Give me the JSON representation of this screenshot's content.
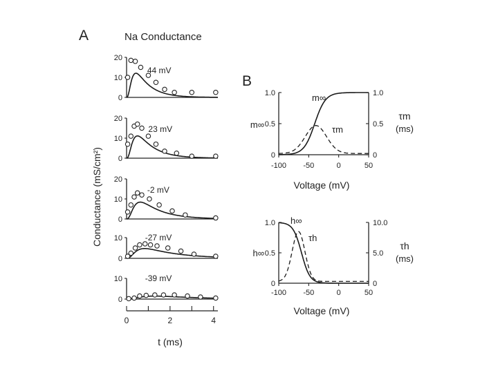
{
  "panel_a": {
    "letter": "A",
    "title": "Na Conductance",
    "ylabel": "Conductance (mS/cm²)",
    "xlabel": "t (ms)",
    "x_ticks": [
      "0",
      "2",
      "4"
    ]
  },
  "panel_b": {
    "letter": "B",
    "xlabel": "Voltage (mV)"
  },
  "chart_data": [
    {
      "type": "line",
      "id": "na-44",
      "label": "44 mV",
      "xlim": [
        0,
        4.2
      ],
      "ylim": [
        0,
        20
      ],
      "y_ticks": [
        "0",
        "10",
        "20"
      ],
      "fit": {
        "gmax": 30,
        "tau_m": 0.17,
        "tau_h": 0.65
      },
      "points": [
        [
          0.05,
          10
        ],
        [
          0.2,
          18.5
        ],
        [
          0.4,
          18
        ],
        [
          0.65,
          15
        ],
        [
          1.0,
          11
        ],
        [
          1.35,
          7.5
        ],
        [
          1.75,
          4
        ],
        [
          2.2,
          2.5
        ],
        [
          3.0,
          2.5
        ],
        [
          4.1,
          2.5
        ]
      ]
    },
    {
      "type": "line",
      "id": "na-23",
      "label": "23 mV",
      "xlim": [
        0,
        4.2
      ],
      "ylim": [
        0,
        20
      ],
      "y_ticks": [
        "0",
        "10",
        "20"
      ],
      "fit": {
        "gmax": 28,
        "tau_m": 0.2,
        "tau_h": 0.75
      },
      "points": [
        [
          0.05,
          7
        ],
        [
          0.2,
          11
        ],
        [
          0.35,
          16
        ],
        [
          0.5,
          17
        ],
        [
          0.7,
          15
        ],
        [
          1.0,
          11
        ],
        [
          1.35,
          7
        ],
        [
          1.75,
          3.5
        ],
        [
          2.3,
          2.5
        ],
        [
          3.0,
          1
        ],
        [
          4.1,
          1
        ]
      ]
    },
    {
      "type": "line",
      "id": "na-m2",
      "label": "-2 mV",
      "xlim": [
        0,
        4.2
      ],
      "ylim": [
        0,
        20
      ],
      "y_ticks": [
        "0",
        "10",
        "20"
      ],
      "fit": {
        "gmax": 21,
        "tau_m": 0.25,
        "tau_h": 0.95
      },
      "points": [
        [
          0.05,
          3.5
        ],
        [
          0.2,
          7
        ],
        [
          0.35,
          11
        ],
        [
          0.5,
          13
        ],
        [
          0.7,
          12
        ],
        [
          1.05,
          10
        ],
        [
          1.5,
          7
        ],
        [
          2.1,
          4
        ],
        [
          2.7,
          2
        ],
        [
          4.1,
          0.5
        ]
      ]
    },
    {
      "type": "line",
      "id": "na-m27",
      "label": "-27 mV",
      "xlim": [
        0,
        4.2
      ],
      "ylim": [
        0,
        10
      ],
      "y_ticks": [
        "0",
        "10"
      ],
      "fit": {
        "gmax": 10,
        "tau_m": 0.3,
        "tau_h": 1.5
      },
      "points": [
        [
          0.05,
          1
        ],
        [
          0.2,
          2.5
        ],
        [
          0.4,
          5
        ],
        [
          0.6,
          6.5
        ],
        [
          0.85,
          7
        ],
        [
          1.1,
          6.5
        ],
        [
          1.4,
          6
        ],
        [
          1.9,
          5
        ],
        [
          2.5,
          3.5
        ],
        [
          3.1,
          2
        ],
        [
          4.1,
          1
        ]
      ]
    },
    {
      "type": "line",
      "id": "na-m39",
      "label": "-39 mV",
      "xlim": [
        0,
        4.2
      ],
      "ylim": [
        0,
        10
      ],
      "y_ticks": [
        "0",
        "10"
      ],
      "fit": {
        "gmax": 3.5,
        "tau_m": 0.5,
        "tau_h": 2.0
      },
      "points": [
        [
          0.1,
          0.2
        ],
        [
          0.35,
          0.5
        ],
        [
          0.6,
          1.5
        ],
        [
          0.9,
          1.8
        ],
        [
          1.3,
          2
        ],
        [
          1.7,
          2
        ],
        [
          2.2,
          2
        ],
        [
          2.8,
          1.5
        ],
        [
          3.4,
          1
        ],
        [
          4.1,
          0.5
        ]
      ]
    },
    {
      "type": "line",
      "id": "m-gate",
      "xlabel": "Voltage (mV)",
      "xlim": [
        -100,
        50
      ],
      "x_ticks": [
        "-100",
        "-50",
        "0",
        "50"
      ],
      "left_axis": {
        "label": "m∞",
        "ylim": [
          0,
          1
        ],
        "ticks": [
          "0",
          "0.5",
          "1.0"
        ]
      },
      "right_axis": {
        "label": "τm",
        "unit": "(ms)",
        "ylim": [
          0,
          1
        ],
        "ticks": [
          "0",
          "0.5",
          "1.0"
        ]
      },
      "series": [
        {
          "name": "m∞",
          "style": "solid",
          "v_half": -40,
          "slope": 9
        },
        {
          "name": "τm",
          "style": "dashed",
          "peak_v": -38,
          "peak": 0.47,
          "width": 25,
          "base": 0.02
        }
      ]
    },
    {
      "type": "line",
      "id": "h-gate",
      "xlabel": "Voltage (mV)",
      "xlim": [
        -100,
        50
      ],
      "x_ticks": [
        "-100",
        "-50",
        "0",
        "50"
      ],
      "left_axis": {
        "label": "h∞",
        "ylim": [
          0,
          1
        ],
        "ticks": [
          "0",
          "0.5",
          "1.0"
        ]
      },
      "right_axis": {
        "label": "τh",
        "unit": "(ms)",
        "ylim": [
          0,
          10
        ],
        "ticks": [
          "0",
          "5.0",
          "10.0"
        ]
      },
      "series": [
        {
          "name": "h∞",
          "style": "solid",
          "v_half": -62,
          "slope": 7
        },
        {
          "name": "τh",
          "style": "dashed",
          "peak_v": -67,
          "peak": 8.5,
          "width": 15,
          "base": 0.3
        }
      ]
    }
  ]
}
